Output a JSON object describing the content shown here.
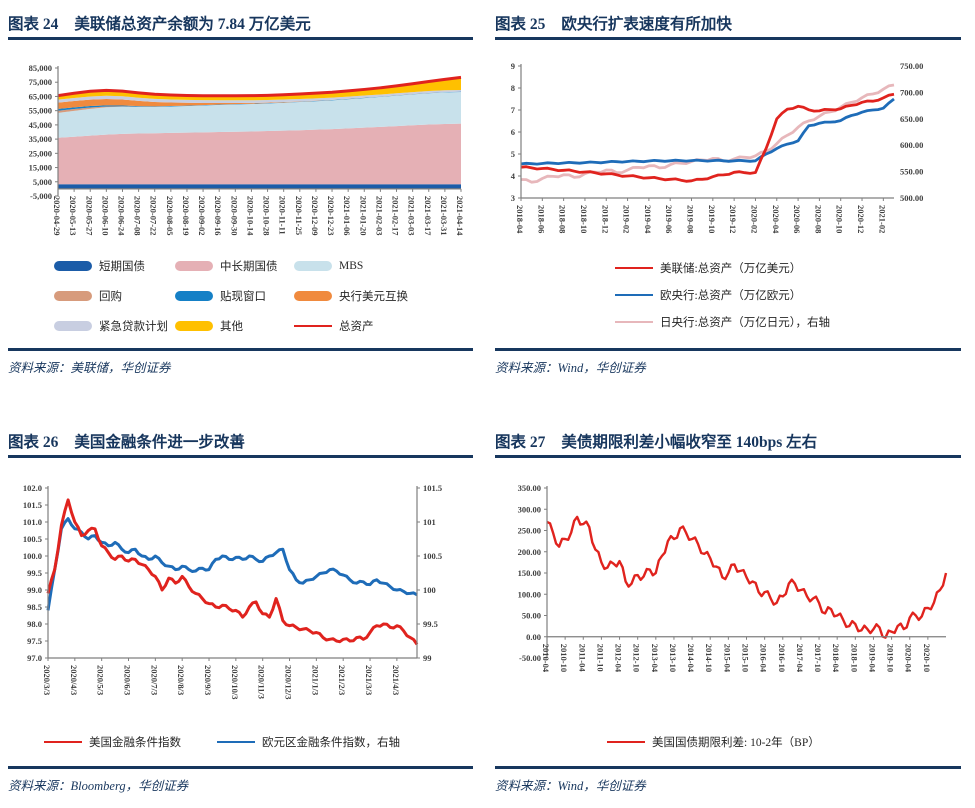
{
  "colors": {
    "navy": "#17365D",
    "rule": "#17375E",
    "red": "#E0231E",
    "blue": "#1E6CB8",
    "pink": "#E7B7BB",
    "axis_line": "#7f7f7f",
    "tick_text": "#3f3f3f"
  },
  "figures": [
    {
      "label": "图表 24",
      "title": "美联储总资产余额为 7.84 万亿美元",
      "source_label": "资料来源：",
      "source": "美联储，华创证券",
      "legend": [
        {
          "type": "box",
          "color": "#1B5CA8",
          "label": "短期国债"
        },
        {
          "type": "box",
          "color": "#E5B0B5",
          "label": "中长期国债"
        },
        {
          "type": "box",
          "color": "#C8E1EB",
          "label": "MBS"
        },
        {
          "type": "box",
          "color": "#D79B7C",
          "label": "回购"
        },
        {
          "type": "box",
          "color": "#1580C6",
          "label": "贴现窗口"
        },
        {
          "type": "box",
          "color": "#F08A3E",
          "label": "央行美元互换"
        },
        {
          "type": "box",
          "color": "#C8CEE1",
          "label": "紧急贷款计划"
        },
        {
          "type": "box",
          "color": "#FFC000",
          "label": "其他"
        },
        {
          "type": "line",
          "color": "#E0231E",
          "label": "总资产"
        }
      ],
      "chart_data": {
        "type": "area",
        "stacked": true,
        "categories": [
          "2020-04-29",
          "2020-05-13",
          "2020-05-27",
          "2020-06-10",
          "2020-06-24",
          "2020-07-08",
          "2020-07-22",
          "2020-08-05",
          "2020-08-19",
          "2020-09-02",
          "2020-09-16",
          "2020-09-30",
          "2020-10-14",
          "2020-10-28",
          "2020-11-11",
          "2020-11-25",
          "2020-12-09",
          "2020-12-23",
          "2021-01-06",
          "2021-01-20",
          "2021-02-03",
          "2021-02-17",
          "2021-03-03",
          "2021-03-17",
          "2021-03-31",
          "2021-04-14"
        ],
        "label_every": 1,
        "left_axis": {
          "min": -5000,
          "max": 85000,
          "step": 10000,
          "format": "comma"
        },
        "axis_cross": 0,
        "series": [
          {
            "name": "短期国债",
            "color": "#1B5CA8",
            "values": [
              3260,
              3260,
              3260,
              3260,
              3260,
              3260,
              3260,
              3260,
              3260,
              3260,
              3260,
              3260,
              3260,
              3260,
              3260,
              3260,
              3260,
              3260,
              3260,
              3260,
              3260,
              3260,
              3260,
              3260,
              3260,
              3260
            ]
          },
          {
            "name": "中长期国债",
            "color": "#E5B0B5",
            "values": [
              32700,
              33400,
              34200,
              34900,
              35400,
              35700,
              35900,
              36100,
              36300,
              36500,
              36700,
              36900,
              37100,
              37400,
              37700,
              38000,
              38400,
              38800,
              39300,
              39800,
              40300,
              40900,
              41500,
              42000,
              42400,
              42600
            ]
          },
          {
            "name": "MBS",
            "color": "#C8E1EB",
            "values": [
              17500,
              18200,
              18800,
              19200,
              19100,
              18700,
              18500,
              18600,
              18700,
              18900,
              19100,
              19200,
              19300,
              19400,
              19600,
              19800,
              20000,
              20200,
              20500,
              20800,
              21100,
              21400,
              21700,
              22000,
              22200,
              22300
            ]
          },
          {
            "name": "回购",
            "color": "#D79B7C",
            "values": [
              1500,
              1300,
              1000,
              600,
              300,
              100,
              0,
              0,
              0,
              0,
              0,
              0,
              0,
              0,
              0,
              0,
              0,
              0,
              0,
              0,
              0,
              0,
              0,
              0,
              0,
              0
            ]
          },
          {
            "name": "贴现窗口",
            "color": "#1580C6",
            "values": [
              1300,
              1150,
              1000,
              800,
              600,
              450,
              350,
              300,
              280,
              260,
              250,
              240,
              230,
              220,
              210,
              205,
              200,
              200,
              200,
              200,
              200,
              200,
              200,
              200,
              200,
              200
            ]
          },
          {
            "name": "央行美元互换",
            "color": "#F08A3E",
            "values": [
              4400,
              4480,
              4500,
              4450,
              4200,
              3700,
              3100,
              2500,
              2000,
              1500,
              1100,
              800,
              550,
              400,
              300,
              220,
              160,
              120,
              90,
              70,
              55,
              45,
              35,
              25,
              18,
              12
            ]
          },
          {
            "name": "紧急贷款计划",
            "color": "#C8CEE1",
            "values": [
              2100,
              2150,
              2200,
              2250,
              2250,
              2200,
              2150,
              2100,
              2050,
              2000,
              1950,
              1900,
              1850,
              1800,
              1750,
              1700,
              1650,
              1600,
              1550,
              1500,
              1450,
              1400,
              1350,
              1300,
              1250,
              1200
            ]
          },
          {
            "name": "其他",
            "color": "#FFC000",
            "values": [
              2800,
              3300,
              3700,
              3800,
              3600,
              3400,
              3250,
              3150,
              3100,
              3100,
              3150,
              3200,
              3250,
              3300,
              3400,
              3500,
              3650,
              3800,
              4000,
              4300,
              4700,
              5200,
              5900,
              6700,
              7700,
              8800
            ]
          }
        ],
        "total_line": {
          "name": "总资产",
          "color": "#E0231E",
          "width": 3
        }
      }
    },
    {
      "label": "图表 25",
      "title": "欧央行扩表速度有所加快",
      "source_label": "资料来源：",
      "source": "Wind，华创证券",
      "legend": [
        {
          "type": "line",
          "color": "#E0231E",
          "label": "美联储:总资产（万亿美元）"
        },
        {
          "type": "line",
          "color": "#1E6CB8",
          "label": "欧央行:总资产（万亿欧元）"
        },
        {
          "type": "line",
          "color": "#E7B7BB",
          "label": "日央行:总资产（万亿日元），右轴"
        }
      ],
      "chart_data": {
        "type": "line",
        "categories": [
          "2018-04",
          "2018-06",
          "2018-08",
          "2018-10",
          "2018-12",
          "2019-02",
          "2019-04",
          "2019-06",
          "2019-08",
          "2019-10",
          "2019-12",
          "2020-02",
          "2020-04",
          "2020-06",
          "2020-08",
          "2020-10",
          "2020-12",
          "2021-02"
        ],
        "label_every": 2,
        "left_axis": {
          "min": 3,
          "max": 9,
          "step": 1,
          "format": "int"
        },
        "right_axis": {
          "min": 500,
          "max": 750,
          "step": 50,
          "format": "2dp",
          "line": false
        },
        "series": [
          {
            "name": "日央行:总资产（万亿日元），右轴",
            "color": "#E7B7BB",
            "axis": "right",
            "width": 2.8,
            "jitter": 1.2,
            "values": [
              535,
              530,
              537,
              541,
              544,
              539,
              546,
              549,
              553,
              548,
              553,
              558,
              561,
              557,
              563,
              566,
              569,
              572,
              575,
              570,
              574,
              577,
              580,
              588,
              603,
              619,
              634,
              646,
              655,
              663,
              672,
              681,
              690,
              697,
              706,
              714
            ]
          },
          {
            "name": "欧央行:总资产（万亿欧元）",
            "color": "#1E6CB8",
            "axis": "left",
            "width": 2.8,
            "jitter": 0.5,
            "values": [
              4.55,
              4.56,
              4.57,
              4.58,
              4.59,
              4.6,
              4.61,
              4.62,
              4.63,
              4.65,
              4.66,
              4.67,
              4.68,
              4.69,
              4.69,
              4.7,
              4.7,
              4.7,
              4.7,
              4.69,
              4.69,
              4.69,
              4.69,
              5.0,
              5.25,
              5.45,
              5.6,
              6.28,
              6.4,
              6.45,
              6.52,
              6.75,
              6.9,
              7.0,
              7.08,
              7.5
            ]
          },
          {
            "name": "美联储:总资产（万亿美元）",
            "color": "#E0231E",
            "axis": "left",
            "width": 2.8,
            "jitter": 0.8,
            "values": [
              4.4,
              4.37,
              4.34,
              4.3,
              4.26,
              4.22,
              4.18,
              4.14,
              4.1,
              4.05,
              4.0,
              3.96,
              3.92,
              3.88,
              3.85,
              3.81,
              3.78,
              3.85,
              3.97,
              4.05,
              4.17,
              4.15,
              4.16,
              5.25,
              6.6,
              7.04,
              7.17,
              7.01,
              6.96,
              7.02,
              7.06,
              7.21,
              7.35,
              7.4,
              7.55,
              7.72
            ]
          }
        ]
      }
    },
    {
      "label": "图表 26",
      "title": "美国金融条件进一步改善",
      "source_label": "资料来源：",
      "source": "Bloomberg，华创证券",
      "legend": [
        {
          "type": "line",
          "color": "#E0231E",
          "label": "美国金融条件指数"
        },
        {
          "type": "line",
          "color": "#1E6CB8",
          "label": "欧元区金融条件指数，右轴"
        }
      ],
      "chart_data": {
        "type": "line",
        "categories": [
          "2020/3/3",
          "2020/4/3",
          "2020/5/3",
          "2020/6/3",
          "2020/7/3",
          "2020/8/3",
          "2020/9/3",
          "2020/10/3",
          "2020/11/3",
          "2020/12/3",
          "2021/1/3",
          "2021/2/3",
          "2021/3/3",
          "2021/4/3"
        ],
        "label_every": 4,
        "left_axis": {
          "min": 97,
          "max": 102,
          "step": 0.5,
          "format": "1dp"
        },
        "right_axis": {
          "min": 99,
          "max": 101.5,
          "step": 0.5,
          "format": "trim",
          "line": true
        },
        "series": [
          {
            "name": "欧元区金融条件指数，右轴",
            "color": "#1E6CB8",
            "axis": "right",
            "width": 3,
            "jitter": 1.2,
            "values": [
              99.7,
              100.3,
              100.9,
              101.05,
              100.9,
              100.85,
              100.75,
              100.8,
              100.7,
              100.65,
              100.7,
              100.6,
              100.55,
              100.6,
              100.5,
              100.45,
              100.5,
              100.4,
              100.35,
              100.3,
              100.35,
              100.3,
              100.28,
              100.32,
              100.3,
              100.45,
              100.5,
              100.45,
              100.48,
              100.45,
              100.5,
              100.45,
              100.42,
              100.5,
              100.55,
              100.6,
              100.3,
              100.15,
              100.1,
              100.15,
              100.2,
              100.25,
              100.3,
              100.28,
              100.22,
              100.15,
              100.1,
              100.12,
              100.08,
              100.15,
              100.1,
              100.05,
              100.0,
              99.98,
              99.95,
              99.93
            ]
          },
          {
            "name": "美国金融条件指数",
            "color": "#E0231E",
            "axis": "left",
            "width": 3,
            "jitter": 1.5,
            "values": [
              98.9,
              99.6,
              100.9,
              101.65,
              101.0,
              100.6,
              100.75,
              100.8,
              100.3,
              100.1,
              99.9,
              100.0,
              99.85,
              99.9,
              99.75,
              99.6,
              99.4,
              99.0,
              99.35,
              99.2,
              99.4,
              99.1,
              98.9,
              98.75,
              98.6,
              98.5,
              98.55,
              98.45,
              98.4,
              98.2,
              98.5,
              98.65,
              98.3,
              98.2,
              98.75,
              98.1,
              97.95,
              97.9,
              97.85,
              97.8,
              97.75,
              97.6,
              97.55,
              97.5,
              97.55,
              97.5,
              97.6,
              97.55,
              97.75,
              97.95,
              98.0,
              97.9,
              97.95,
              97.8,
              97.6,
              97.4
            ]
          }
        ]
      }
    },
    {
      "label": "图表 27",
      "title": "美债期限利差小幅收窄至 140bps 左右",
      "source_label": "资料来源：",
      "source": "Wind，华创证券",
      "legend": [
        {
          "type": "line",
          "color": "#E0231E",
          "label": "美国国债期限利差: 10-2年（BP）"
        }
      ],
      "chart_data": {
        "type": "line",
        "categories": [
          "2010-04",
          "2010-10",
          "2011-04",
          "2011-10",
          "2012-04",
          "2012-10",
          "2013-04",
          "2013-10",
          "2014-04",
          "2014-10",
          "2015-04",
          "2015-10",
          "2016-04",
          "2016-10",
          "2017-04",
          "2017-10",
          "2018-04",
          "2018-10",
          "2019-04",
          "2019-10",
          "2020-04",
          "2020-10"
        ],
        "label_every": 3,
        "left_axis": {
          "min": -50,
          "max": 350,
          "step": 50,
          "format": "2dp"
        },
        "axis_cross": 0,
        "series": [
          {
            "name": "美国国债期限利差: 10-2年（BP）",
            "color": "#E0231E",
            "axis": "left",
            "width": 2.4,
            "jitter": 4,
            "values": [
              270,
              245,
              212,
              230,
              245,
              282,
              265,
              258,
              205,
              175,
              163,
              172,
              178,
              130,
              125,
              145,
              142,
              158,
              150,
              190,
              225,
              230,
              255,
              245,
              230,
              218,
              195,
              185,
              165,
              140,
              150,
              170,
              155,
              140,
              130,
              105,
              105,
              90,
              80,
              95,
              125,
              125,
              110,
              95,
              90,
              80,
              55,
              65,
              50,
              40,
              25,
              30,
              15,
              18,
              18,
              22,
              -2,
              12,
              25,
              18,
              45,
              50,
              48,
              68,
              80,
              110,
              150
            ]
          }
        ]
      }
    }
  ]
}
